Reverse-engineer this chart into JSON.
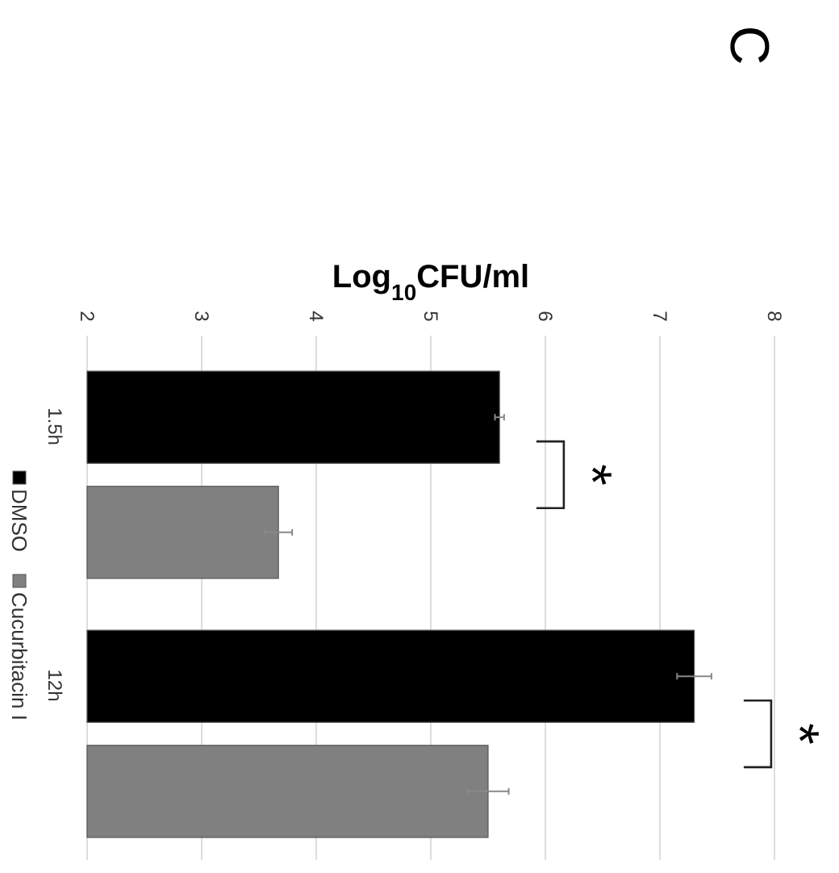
{
  "chart_data": {
    "type": "bar",
    "orientation": "horizontal",
    "xlabel": "Log$_{10}$CFU/ml",
    "categories": [
      "1.5h",
      "12h"
    ],
    "series": [
      {
        "name": "DMSO",
        "color": "#000000",
        "values": [
          5.6,
          7.3
        ],
        "errors": [
          0.04,
          0.15
        ]
      },
      {
        "name": "Cucurbitacin I",
        "color": "#808080",
        "values": [
          3.67,
          5.5
        ],
        "errors": [
          0.12,
          0.18
        ]
      }
    ],
    "xlim": [
      2,
      8
    ],
    "xticks": [
      2,
      3,
      4,
      5,
      6,
      7,
      8
    ],
    "grid": "x",
    "legend": "left",
    "annotations": [
      "*",
      "*",
      "C"
    ]
  }
}
